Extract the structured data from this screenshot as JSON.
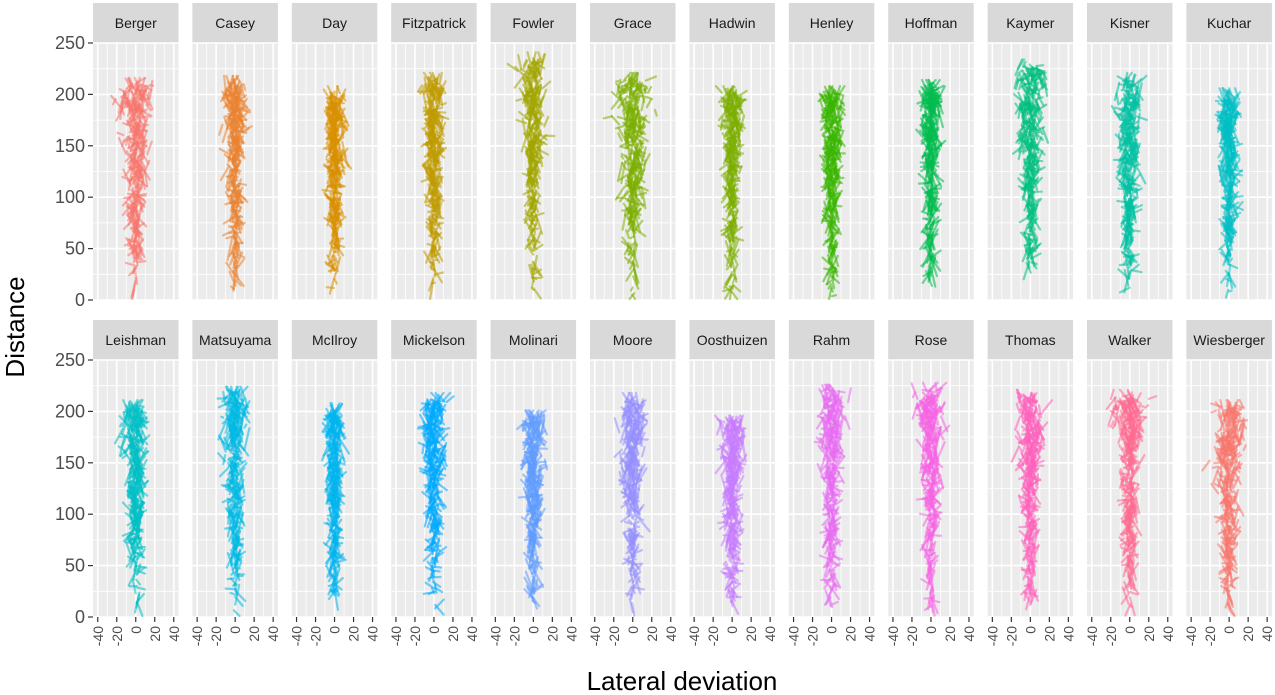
{
  "chart_data": {
    "type": "faceted-segment",
    "description_free": true,
    "xlabel": "Lateral deviation",
    "ylabel": "Distance",
    "xlim": [
      -45,
      45
    ],
    "ylim": [
      0,
      250
    ],
    "x_ticks": [
      -40,
      -20,
      0,
      20,
      40
    ],
    "y_ticks": [
      0,
      50,
      100,
      150,
      200,
      250
    ],
    "x_tick_labels": [
      "-40",
      "-20",
      "0",
      "20",
      "40"
    ],
    "y_tick_labels": [
      "0",
      "50",
      "100",
      "150",
      "200",
      "250"
    ],
    "facet_rows": 2,
    "facet_cols": 12,
    "facets": [
      {
        "name": "Berger",
        "color": "#F8766D",
        "max_distance": 210,
        "max_spread": 20
      },
      {
        "name": "Casey",
        "color": "#EA8331",
        "max_distance": 212,
        "max_spread": 12
      },
      {
        "name": "Day",
        "color": "#D89000",
        "max_distance": 202,
        "max_spread": 10
      },
      {
        "name": "Fitzpatrick",
        "color": "#C09B00",
        "max_distance": 215,
        "max_spread": 12
      },
      {
        "name": "Fowler",
        "color": "#A3A500",
        "max_distance": 235,
        "max_spread": 14
      },
      {
        "name": "Grace",
        "color": "#7CAE00",
        "max_distance": 215,
        "max_spread": 22
      },
      {
        "name": "Hadwin",
        "color": "#7CAE00",
        "max_distance": 202,
        "max_spread": 10
      },
      {
        "name": "Henley",
        "color": "#39B600",
        "max_distance": 202,
        "max_spread": 12
      },
      {
        "name": "Hoffman",
        "color": "#00BB4E",
        "max_distance": 208,
        "max_spread": 10
      },
      {
        "name": "Kaymer",
        "color": "#00BF7D",
        "max_distance": 228,
        "max_spread": 18
      },
      {
        "name": "Kisner",
        "color": "#00C1A3",
        "max_distance": 215,
        "max_spread": 14
      },
      {
        "name": "Kuchar",
        "color": "#00BFC4",
        "max_distance": 200,
        "max_spread": 10
      },
      {
        "name": "Leishman",
        "color": "#00BFC4",
        "max_distance": 205,
        "max_spread": 14
      },
      {
        "name": "Matsuyama",
        "color": "#00B9E3",
        "max_distance": 218,
        "max_spread": 14
      },
      {
        "name": "McIlroy",
        "color": "#00B4EF",
        "max_distance": 202,
        "max_spread": 8
      },
      {
        "name": "Mickelson",
        "color": "#00A9FF",
        "max_distance": 212,
        "max_spread": 14
      },
      {
        "name": "Molinari",
        "color": "#619CFF",
        "max_distance": 195,
        "max_spread": 12
      },
      {
        "name": "Moore",
        "color": "#9590FF",
        "max_distance": 212,
        "max_spread": 16
      },
      {
        "name": "Oosthuizen",
        "color": "#C77CFF",
        "max_distance": 190,
        "max_spread": 12
      },
      {
        "name": "Rahm",
        "color": "#E76BF3",
        "max_distance": 220,
        "max_spread": 14
      },
      {
        "name": "Rose",
        "color": "#F564E3",
        "max_distance": 222,
        "max_spread": 14
      },
      {
        "name": "Thomas",
        "color": "#FF62BC",
        "max_distance": 215,
        "max_spread": 16
      },
      {
        "name": "Walker",
        "color": "#FF6C91",
        "max_distance": 215,
        "max_spread": 16
      },
      {
        "name": "Wiesberger",
        "color": "#F8766D",
        "max_distance": 205,
        "max_spread": 20
      }
    ]
  }
}
